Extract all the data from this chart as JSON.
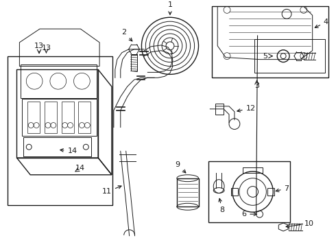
{
  "background_color": "#ffffff",
  "line_color": "#1a1a1a",
  "fig_width": 4.9,
  "fig_height": 3.6,
  "dpi": 100
}
